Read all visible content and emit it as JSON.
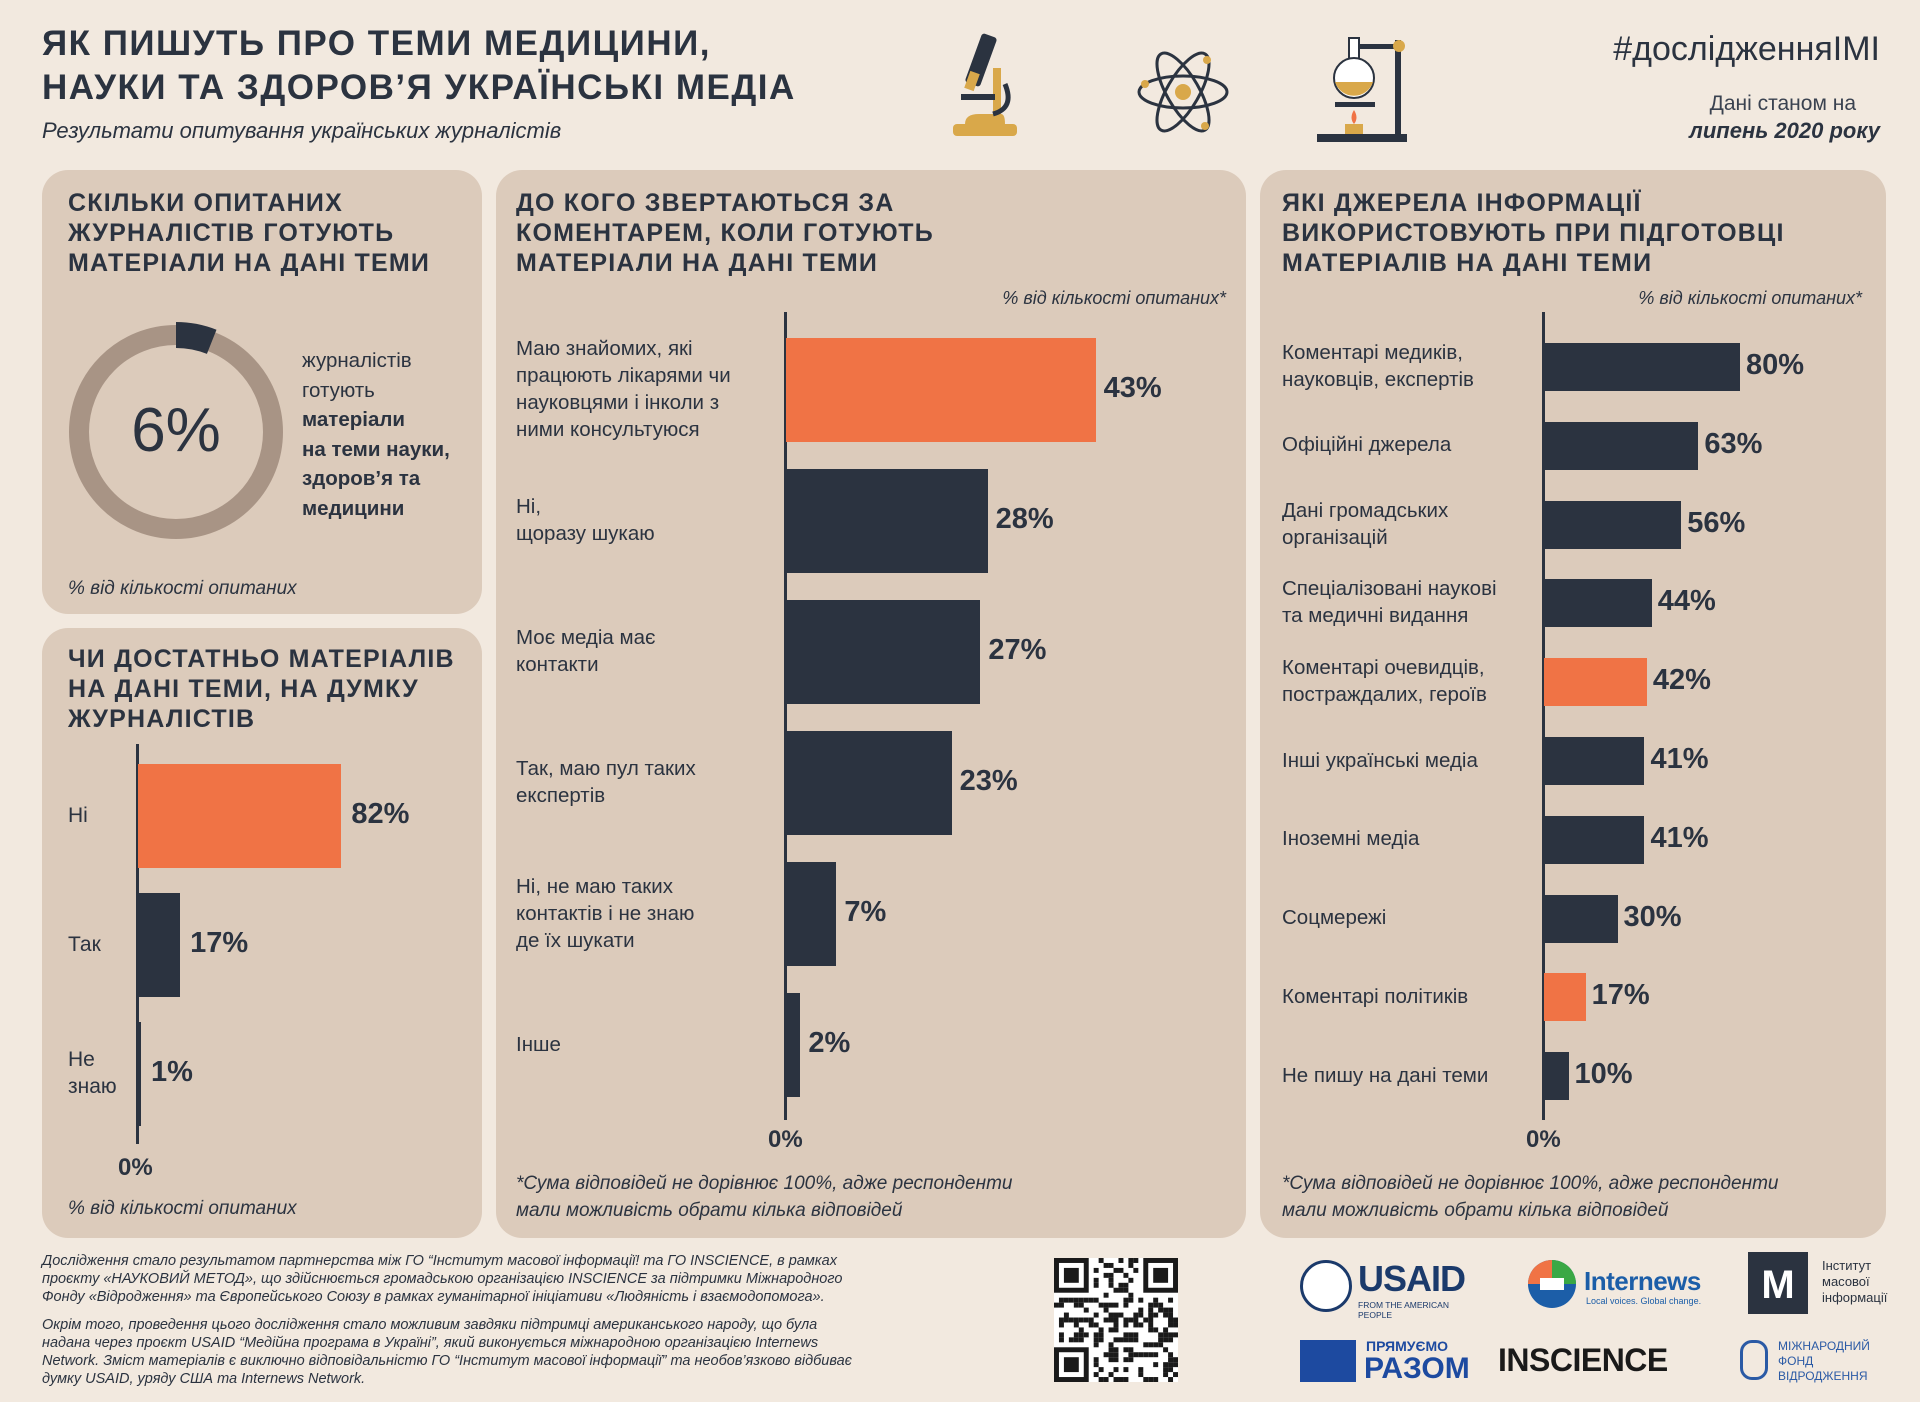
{
  "header": {
    "title_line1": "ЯК ПИШУТЬ ПРО ТЕМИ МЕДИЦИНИ,",
    "title_line2": "НАУКИ ТА ЗДОРОВ’Я УКРАЇНСЬКІ МЕДІА",
    "subtitle": "Результати опитування українських журналістів",
    "hashtag": "#дослідженняІМІ",
    "date_line1": "Дані станом на",
    "date_line2": "липень 2020 року",
    "icons": [
      "microscope-icon",
      "atom-icon",
      "flask-icon"
    ]
  },
  "colors": {
    "accent": "#f07345",
    "dark": "#2b3340",
    "panel": "#dccbbb",
    "background": "#f2e9df",
    "ring": "#a89485"
  },
  "panel1": {
    "title": [
      "СКІЛЬКИ ОПИТАНИХ",
      "ЖУРНАЛІСТІВ ГОТУЮТЬ",
      "МАТЕРІАЛИ НА ДАНІ ТЕМИ"
    ],
    "percent_label": "6%",
    "text_plain": [
      "журналістів",
      "готують"
    ],
    "text_bold": [
      "матеріали",
      "на теми науки,",
      "здоров’я та",
      "медицини"
    ],
    "note": "% від кількості опитаних"
  },
  "panel2": {
    "title": [
      "ЧИ ДОСТАТНЬО МАТЕРІАЛІВ",
      "НА ДАНІ ТЕМИ, НА ДУМКУ",
      "ЖУРНАЛІСТІВ"
    ],
    "zero_label": "0%",
    "note": "% від кількості опитаних"
  },
  "panel3": {
    "title": [
      "ДО КОГО ЗВЕРТАЮТЬСЯ ЗА",
      "КОМЕНТАРЕМ, КОЛИ ГОТУЮТЬ",
      "МАТЕРІАЛИ НА ДАНІ ТЕМИ"
    ],
    "unit_note": "% від кількості опитаних*",
    "zero_label": "0%",
    "footnote": [
      "*Сума відповідей не дорівнює 100%, адже респонденти",
      "мали можливість обрати кілька відповідей"
    ]
  },
  "panel4": {
    "title": [
      "ЯКІ ДЖЕРЕЛА ІНФОРМАЦІЇ",
      "ВИКОРИСТОВУЮТЬ ПРИ ПІДГОТОВЦІ",
      "МАТЕРІАЛІВ НА ДАНІ ТЕМИ"
    ],
    "unit_note": "% від кількості опитаних*",
    "zero_label": "0%",
    "footnote": [
      "*Сума відповідей не дорівнює 100%, адже респонденти",
      "мали можливість обрати кілька відповідей"
    ]
  },
  "chart_data": [
    {
      "type": "pie",
      "categories": [
        "журналістів готують матеріали на теми науки, здоров’я та медицини"
      ],
      "values": [
        6
      ],
      "unit": "%"
    },
    {
      "type": "bar",
      "orientation": "horizontal",
      "categories": [
        [
          "Ні"
        ],
        [
          "Так"
        ],
        [
          "Не",
          "знаю"
        ]
      ],
      "values": [
        82,
        17,
        1
      ],
      "value_labels": [
        "82%",
        "17%",
        "1%"
      ],
      "highlight": [
        true,
        false,
        false
      ],
      "xlim": [
        0,
        100
      ]
    },
    {
      "type": "bar",
      "orientation": "horizontal",
      "categories": [
        [
          "Маю знайомих, які",
          "працюють лікарями чи",
          "науковцями і інколи з",
          "ними консультуюся"
        ],
        [
          "Ні,",
          "щоразу шукаю"
        ],
        [
          "Моє медіа має",
          "контакти"
        ],
        [
          "Так, маю пул таких",
          "експертів"
        ],
        [
          "Ні, не маю таких",
          "контактів і не знаю",
          "де їх шукати"
        ],
        [
          "Інше"
        ]
      ],
      "values": [
        43,
        28,
        27,
        23,
        7,
        2
      ],
      "value_labels": [
        "43%",
        "28%",
        "27%",
        "23%",
        "7%",
        "2%"
      ],
      "highlight": [
        true,
        false,
        false,
        false,
        false,
        false
      ],
      "xlim": [
        0,
        100
      ]
    },
    {
      "type": "bar",
      "orientation": "horizontal",
      "categories": [
        [
          "Коментарі медиків,",
          "науковців, експертів"
        ],
        [
          "Офіційні джерела"
        ],
        [
          "Дані громадських",
          "організацій"
        ],
        [
          "Спеціалізовані наукові",
          "та медичні видання"
        ],
        [
          "Коментарі очевидців,",
          "постраждалих, героїв"
        ],
        [
          "Інші українські медіа"
        ],
        [
          "Іноземні медіа"
        ],
        [
          "Соцмережі"
        ],
        [
          "Коментарі політиків"
        ],
        [
          "Не пишу на дані теми"
        ]
      ],
      "values": [
        80,
        63,
        56,
        44,
        42,
        41,
        41,
        30,
        17,
        10
      ],
      "value_labels": [
        "80%",
        "63%",
        "56%",
        "44%",
        "42%",
        "41%",
        "41%",
        "30%",
        "17%",
        "10%"
      ],
      "highlight": [
        false,
        false,
        false,
        false,
        true,
        false,
        false,
        false,
        true,
        false
      ],
      "xlim": [
        0,
        100
      ]
    }
  ],
  "footer": {
    "para1": [
      "Дослідження стало результатом партнерства між ГО “Інститут масової інформації! та ГО INSCIENCE, в рамках",
      "проєкту «НАУКОВИЙ МЕТОД», що  здійснюється громадською організацією INSCIENCE за підтримки Міжнародного",
      "Фонду «Відродження» та Європейського Союзу в рамках гуманітарної ініціативи «Людяність і взаємодопомога»."
    ],
    "para2": [
      "Окрім того, проведення цього дослідження стало можливим завдяки підтримці американського народу, що була",
      "надана через проєкт USAID “Медійна програма в Україні”, який виконується міжнародною організацією Internews",
      "Network. Зміст матеріалів є виключно відповідальністю ГО “Інститут масової інформації” та необов’язково відбиває",
      "думку USAID, уряду США та Internews Network."
    ]
  },
  "logos": {
    "usaid": "USAID",
    "usaid_tag": "FROM THE AMERICAN PEOPLE",
    "internews": "Internews",
    "internews_tag": "Local voices. Global change.",
    "imi": [
      "Інститут",
      "масової",
      "інформації"
    ],
    "pryamuemo_top": "ПРЯМУЄМО",
    "pryamuemo_bottom": "РАЗОМ",
    "inscience": "INSCIENCE",
    "irf": [
      "МІЖНАРОДНИЙ",
      "ФОНД",
      "ВІДРОДЖЕННЯ"
    ]
  }
}
